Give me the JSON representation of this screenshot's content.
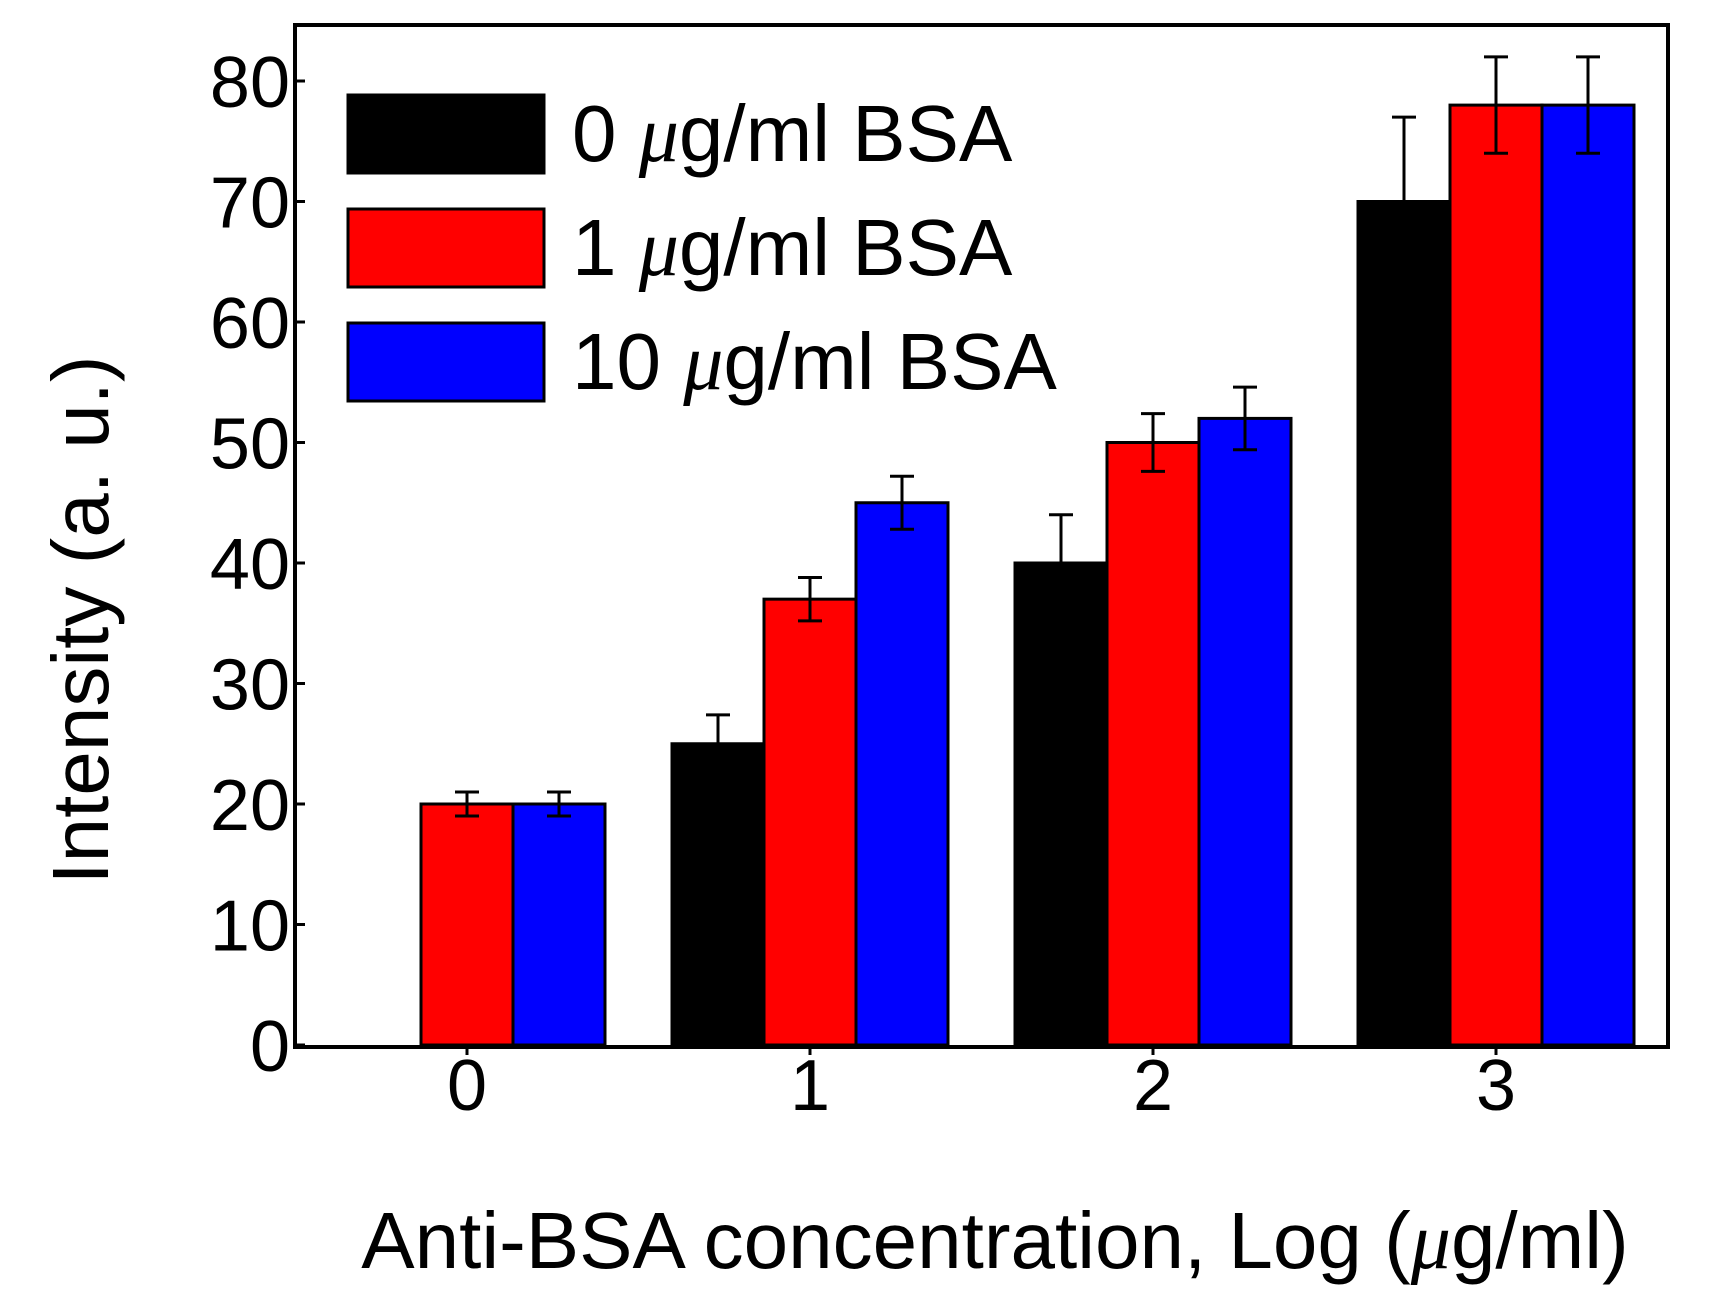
{
  "chart_data": {
    "type": "bar",
    "title": "",
    "categories": [
      "0",
      "1",
      "2",
      "3"
    ],
    "xlabel_parts": [
      "Anti-BSA concentration, Log (",
      "μ",
      "g/ml)"
    ],
    "ylabel": "Intensity (a. u.)",
    "ylim": [
      0,
      82
    ],
    "yticks": [
      0,
      10,
      20,
      30,
      40,
      50,
      60,
      70,
      80
    ],
    "legend_position": "top-left",
    "series": [
      {
        "name": "0 μg/ml BSA",
        "label_parts": [
          "0 ",
          "μ",
          "g/ml BSA"
        ],
        "color": "#000000",
        "values": [
          0,
          25,
          40,
          70
        ],
        "errors": [
          0,
          2.4,
          4,
          7
        ]
      },
      {
        "name": "1 μg/ml BSA",
        "label_parts": [
          "1 ",
          "μ",
          "g/ml BSA"
        ],
        "color": "#ff0000",
        "values": [
          20,
          37,
          50,
          78
        ],
        "errors": [
          1,
          1.8,
          2.4,
          4
        ]
      },
      {
        "name": "10 μg/ml BSA",
        "label_parts": [
          "10 ",
          "μ",
          "g/ml BSA"
        ],
        "color": "#0000ff",
        "values": [
          20,
          45,
          52,
          78
        ],
        "errors": [
          1,
          2.2,
          2.6,
          4
        ]
      }
    ]
  }
}
